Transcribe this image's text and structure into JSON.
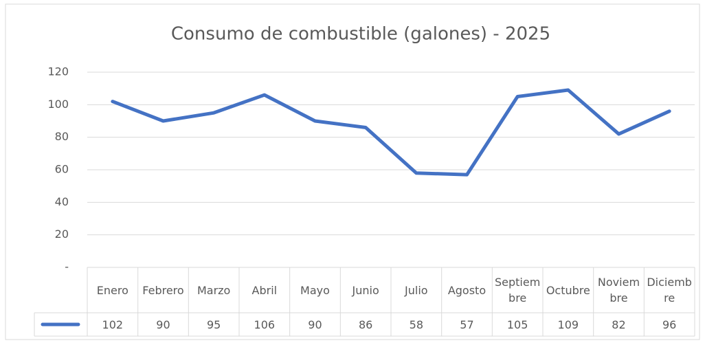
{
  "chart_data": {
    "type": "line",
    "title": "Consumo de combustible (galones) - 2025",
    "categories": [
      "Enero",
      "Febrero",
      "Marzo",
      "Abril",
      "Mayo",
      "Junio",
      "Julio",
      "Agosto",
      "Septiembre",
      "Octubre",
      "Noviembre",
      "Diciembre"
    ],
    "series": [
      {
        "color": "#4472c4",
        "values": [
          102,
          90,
          95,
          106,
          90,
          86,
          58,
          57,
          105,
          109,
          82,
          96
        ]
      }
    ],
    "ylim": [
      0,
      120
    ],
    "yticks": [
      {
        "value": 0,
        "label": "-"
      },
      20,
      40,
      60,
      80,
      100,
      120
    ],
    "grid": true,
    "data_table": true
  }
}
